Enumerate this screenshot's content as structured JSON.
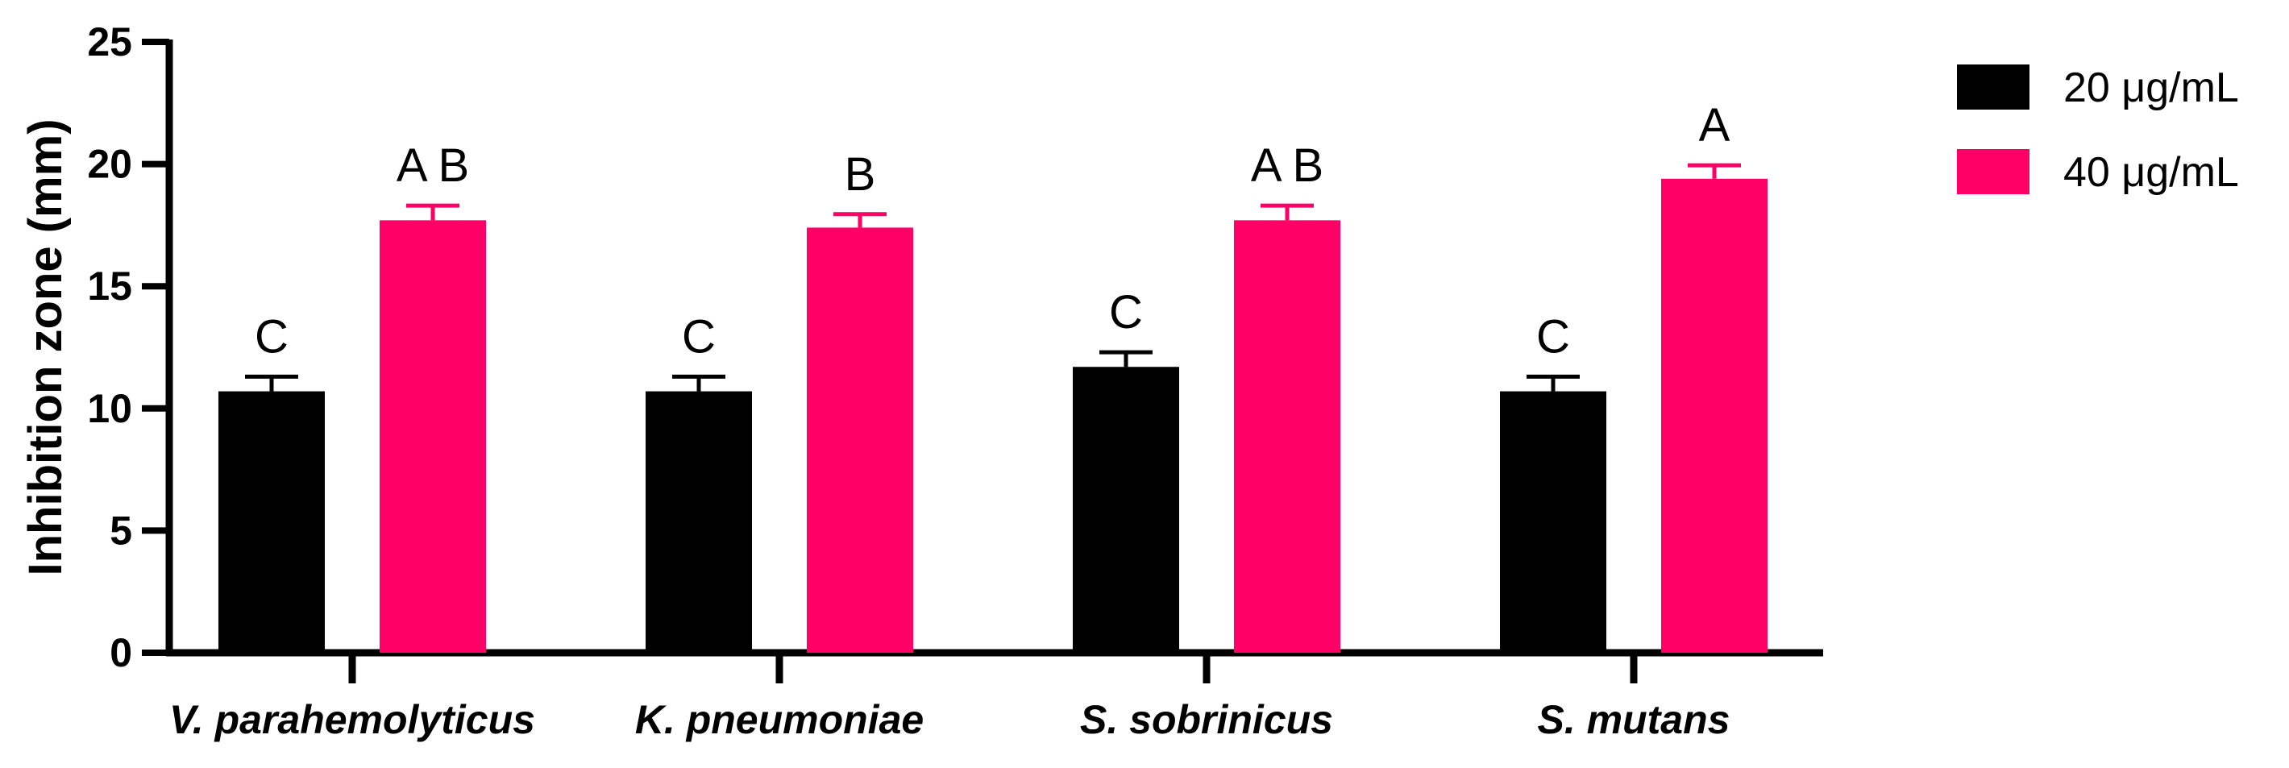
{
  "chart_data": {
    "type": "bar",
    "title": "",
    "xlabel": "",
    "ylabel": "Inhibition zone (mm)",
    "ylim": [
      0,
      25
    ],
    "yticks": [
      "0",
      "5",
      "10",
      "15",
      "20",
      "25"
    ],
    "categories": [
      "V. parahemolyticus",
      "K. pneumoniae",
      "S. sobrinicus",
      "S. mutans"
    ],
    "series": [
      {
        "name": "20 μg/mL",
        "color": "#000000",
        "values": [
          10.7,
          10.7,
          11.7,
          10.7
        ],
        "errors": [
          0.6,
          0.6,
          0.6,
          0.6
        ],
        "labels": [
          "C",
          "C",
          "C",
          "C"
        ]
      },
      {
        "name": "40 μg/mL",
        "color": "#ff0066",
        "values": [
          17.7,
          17.4,
          17.7,
          19.4
        ],
        "errors": [
          0.6,
          0.55,
          0.6,
          0.55
        ],
        "labels": [
          "A B",
          "B",
          "A B",
          "A"
        ]
      }
    ],
    "legend_position": "top-right",
    "grid": false
  }
}
